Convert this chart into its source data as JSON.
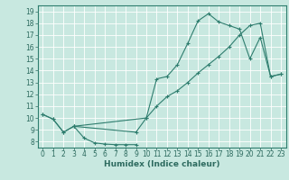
{
  "title": "",
  "xlabel": "Humidex (Indice chaleur)",
  "bg_color": "#c8e8e0",
  "grid_color": "#ffffff",
  "line_color": "#2e7d6e",
  "xlim": [
    -0.5,
    23.5
  ],
  "ylim": [
    7.5,
    19.5
  ],
  "xticks": [
    0,
    1,
    2,
    3,
    4,
    5,
    6,
    7,
    8,
    9,
    10,
    11,
    12,
    13,
    14,
    15,
    16,
    17,
    18,
    19,
    20,
    21,
    22,
    23
  ],
  "yticks": [
    8,
    9,
    10,
    11,
    12,
    13,
    14,
    15,
    16,
    17,
    18,
    19
  ],
  "line1_x": [
    0,
    1,
    2,
    3,
    4,
    5,
    6,
    7,
    8,
    9
  ],
  "line1_y": [
    10.3,
    9.9,
    8.8,
    9.3,
    8.3,
    7.9,
    7.8,
    7.75,
    7.75,
    7.75
  ],
  "line2_x": [
    0,
    1,
    2,
    3,
    9,
    10,
    11,
    12,
    13,
    14,
    15,
    16,
    17,
    18,
    19,
    20,
    21,
    22,
    23
  ],
  "line2_y": [
    10.3,
    9.9,
    8.8,
    9.3,
    8.8,
    10.0,
    13.3,
    13.5,
    14.5,
    16.3,
    18.2,
    18.8,
    18.1,
    17.8,
    17.5,
    15.0,
    16.8,
    13.5,
    13.7
  ],
  "line3_x": [
    3,
    10,
    11,
    12,
    13,
    14,
    15,
    16,
    17,
    18,
    19,
    20,
    21,
    22,
    23
  ],
  "line3_y": [
    9.3,
    10.0,
    11.0,
    11.8,
    12.3,
    13.0,
    13.8,
    14.5,
    15.2,
    16.0,
    17.0,
    17.8,
    18.0,
    13.5,
    13.7
  ],
  "tick_fontsize": 5.5,
  "xlabel_fontsize": 6.5,
  "marker_size": 3.0,
  "line_width": 0.8
}
